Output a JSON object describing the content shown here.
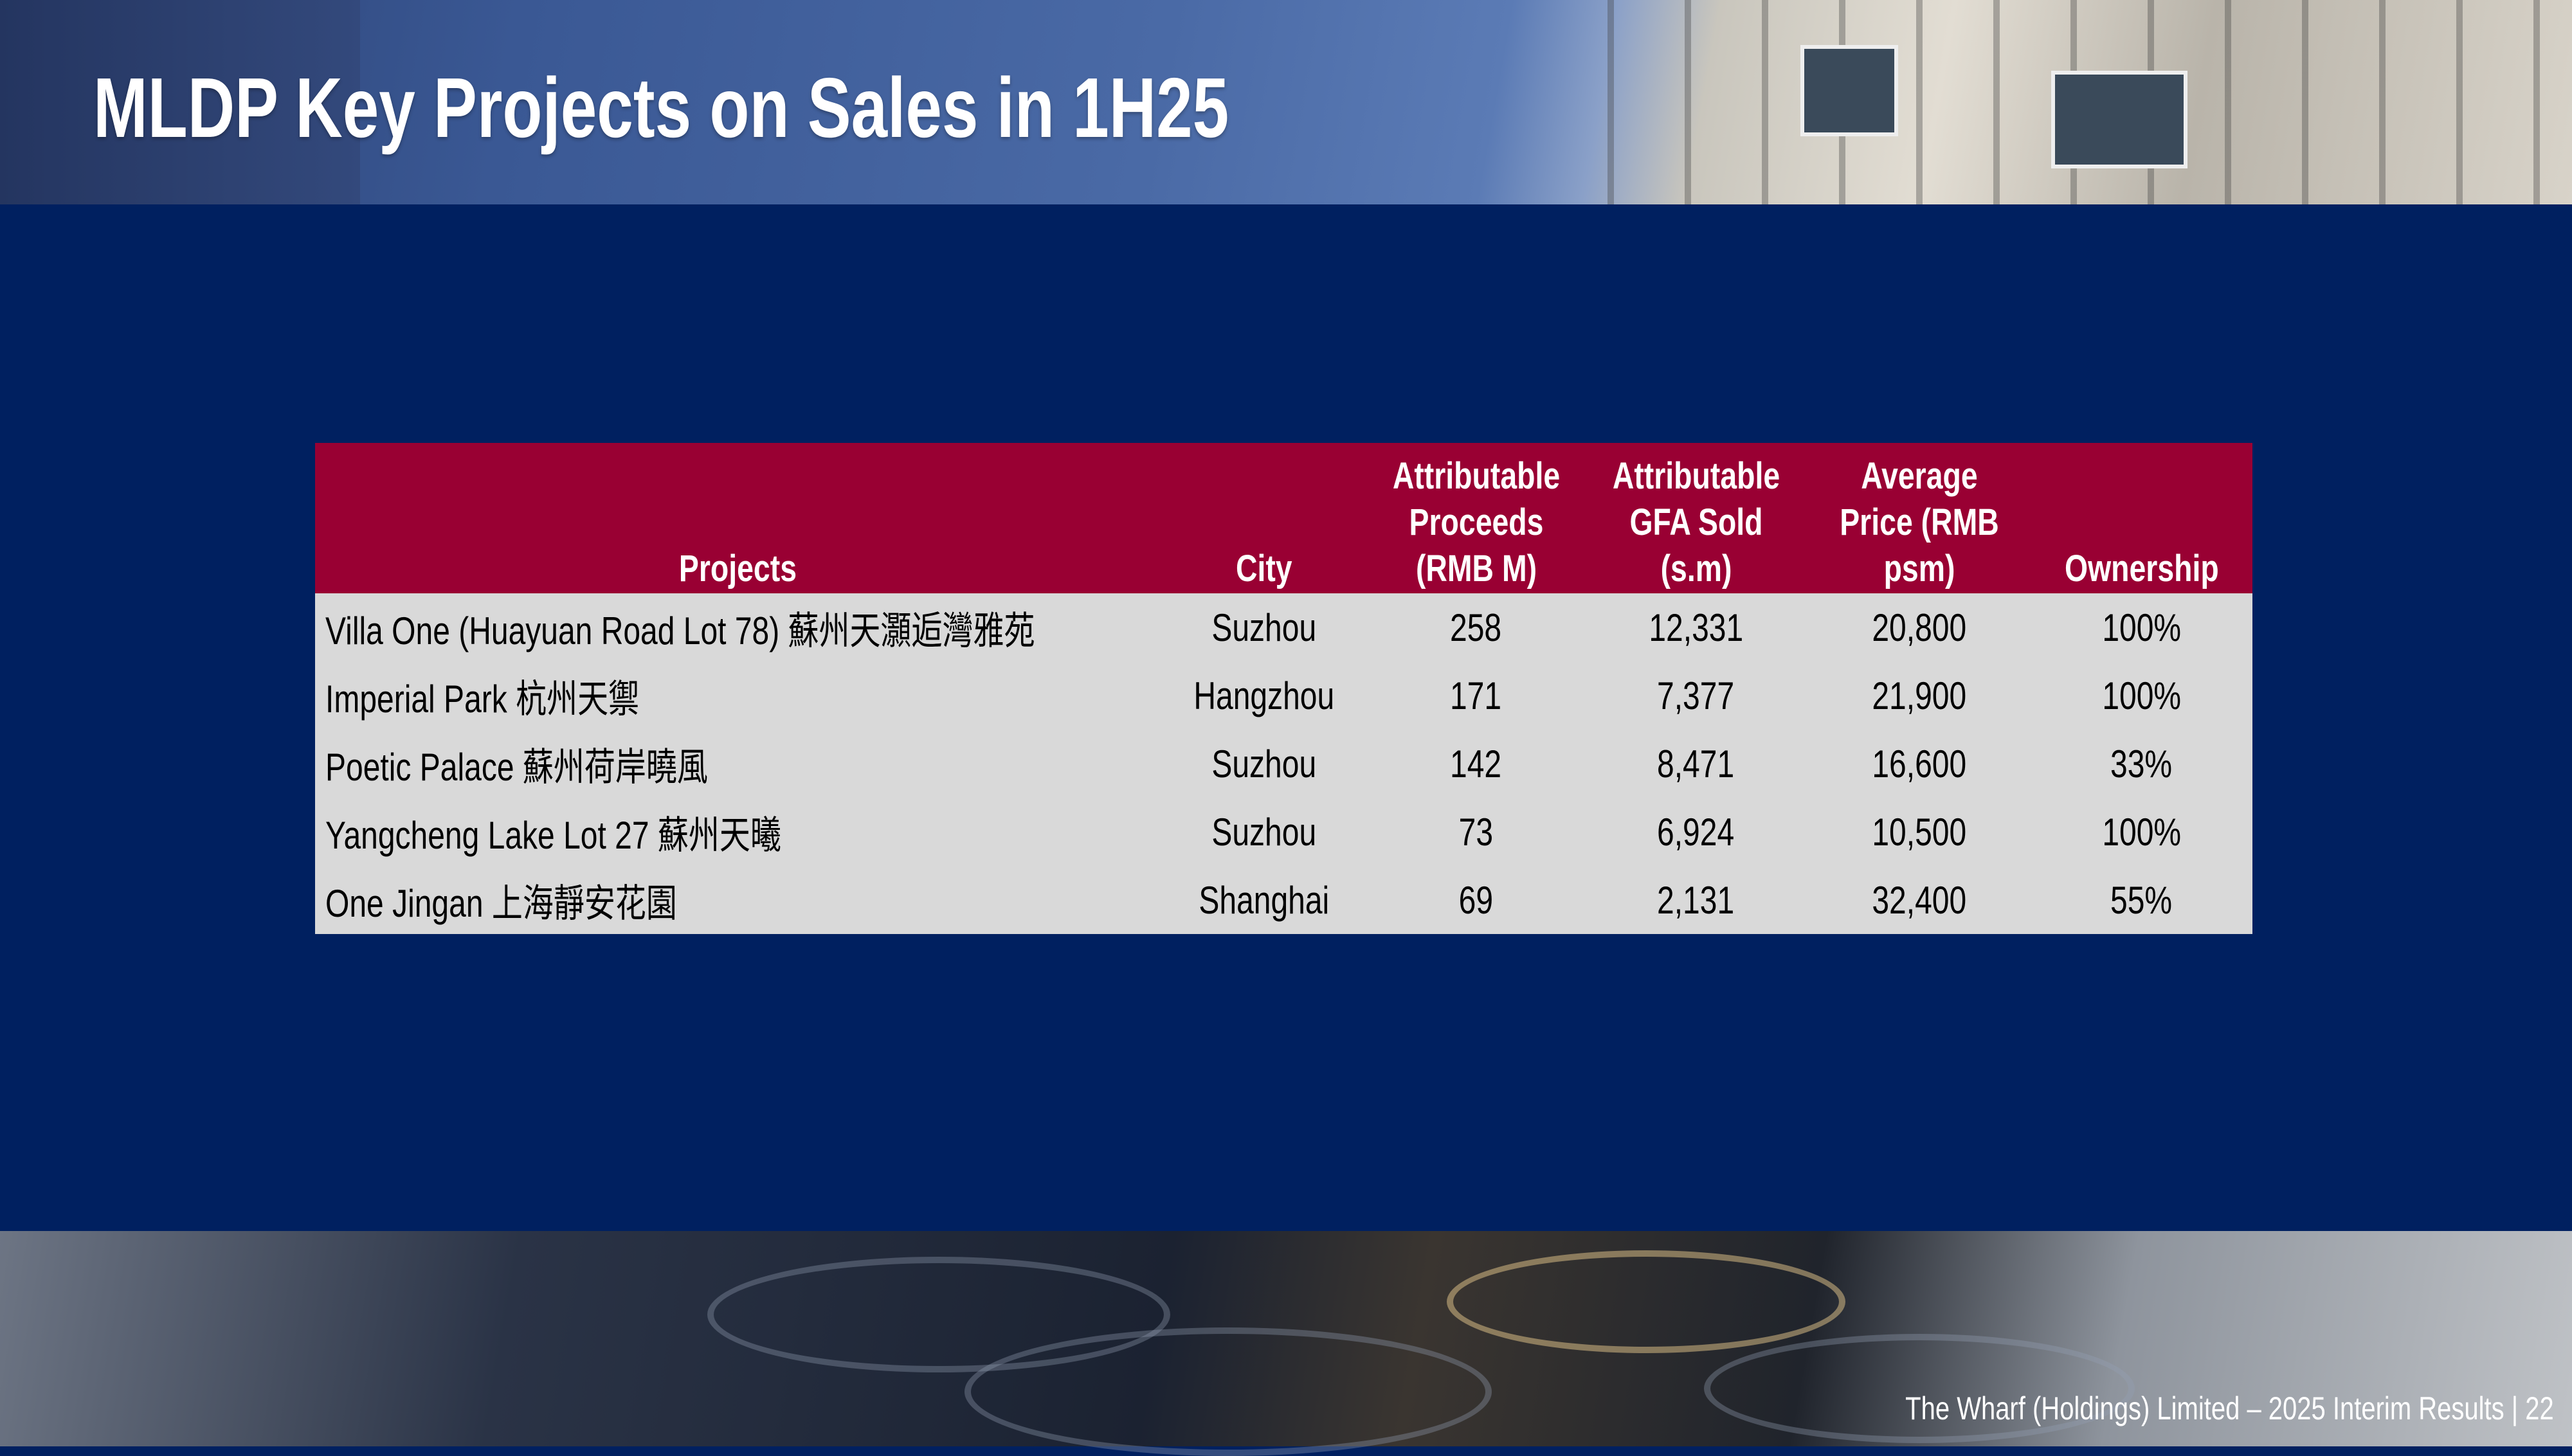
{
  "slide": {
    "title": "MLDP Key Projects on Sales in 1H25",
    "footer": "The Wharf (Holdings) Limited – 2025 Interim Results |  22",
    "colors": {
      "background": "#002060",
      "table_header": "#990033",
      "table_body": "#d9d9d9"
    }
  },
  "table": {
    "headers": [
      "Projects",
      "City",
      "Attributable Proceeds (RMB M)",
      "Attributable GFA Sold (s.m)",
      "Average Price (RMB psm)",
      "Ownership"
    ],
    "rows": [
      [
        "Villa One (Huayuan Road Lot 78) 蘇州天灝逅灣雅苑",
        "Suzhou",
        "258",
        "12,331",
        "20,800",
        "100%"
      ],
      [
        "Imperial Park 杭州天禦",
        "Hangzhou",
        "171",
        "7,377",
        "21,900",
        "100%"
      ],
      [
        "Poetic Palace 蘇州荷岸曉風",
        "Suzhou",
        "142",
        "8,471",
        "16,600",
        "33%"
      ],
      [
        "Yangcheng Lake Lot 27 蘇州天曦",
        "Suzhou",
        "73",
        "6,924",
        "10,500",
        "100%"
      ],
      [
        "One Jingan 上海靜安花園",
        "Shanghai",
        "69",
        "2,131",
        "32,400",
        "55%"
      ]
    ]
  }
}
